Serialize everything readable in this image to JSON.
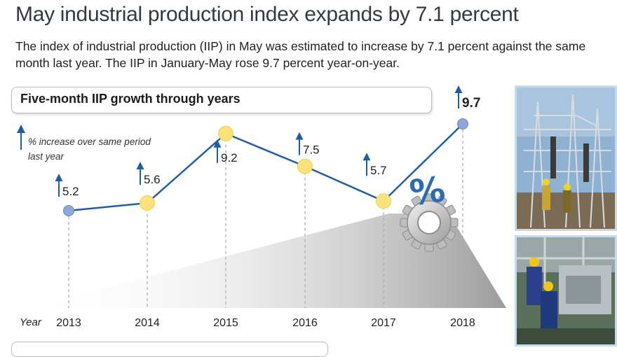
{
  "header": {
    "title": "May industrial production index expands by 7.1 percent",
    "subtitle": "The index of industrial production (IIP) in May was estimated to increase by 7.1 percent against the same month last year. The IIP in January-May rose 9.7 percent year-on-year."
  },
  "section": {
    "title": "Five-month IIP growth through years"
  },
  "legend": {
    "line1": "% increase over same period",
    "line2": "last year"
  },
  "gear": {
    "label": "%"
  },
  "chart_data": {
    "type": "line",
    "title": "Five-month IIP growth through years",
    "xlabel": "Year",
    "ylabel": "% increase over same period last year",
    "categories": [
      "2013",
      "2014",
      "2015",
      "2016",
      "2017",
      "2018"
    ],
    "values": [
      5.2,
      5.6,
      9.2,
      7.5,
      5.7,
      9.7
    ],
    "value_labels": [
      "5.2",
      "5.6",
      "9.2",
      "7.5",
      "5.7",
      "9.7"
    ],
    "grid": false,
    "colors": {
      "line": "#1c5fa8",
      "marker_blue": "#8fa6d8",
      "marker_yellow": "#fbe27a",
      "arrow": "#1c5fa8"
    },
    "marker_colors": [
      "#8fa6d8",
      "#fbe27a",
      "#fbe27a",
      "#fbe27a",
      "#fbe27a",
      "#8fa6d8"
    ]
  }
}
